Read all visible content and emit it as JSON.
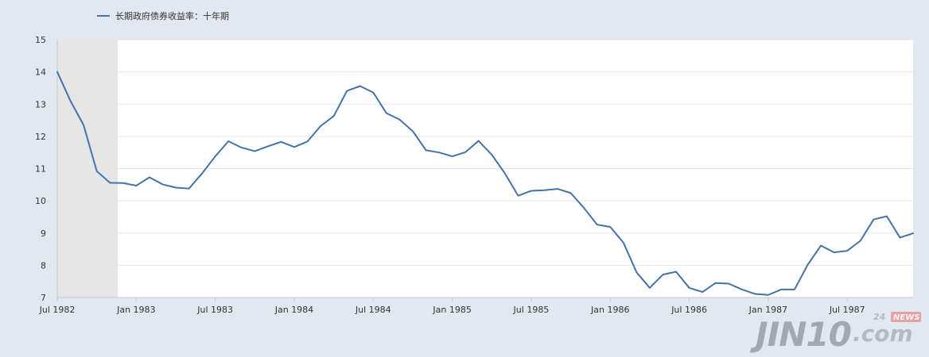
{
  "chart_data": {
    "type": "line",
    "title": "",
    "xlabel": "",
    "ylabel": "",
    "legend_position": "top-left",
    "grid": true,
    "ylim": [
      7,
      15
    ],
    "y_ticks": [
      7,
      8,
      9,
      10,
      11,
      12,
      13,
      14,
      15
    ],
    "x_ticks": [
      {
        "label": "Jul 1982",
        "index": 0
      },
      {
        "label": "Jan 1983",
        "index": 6
      },
      {
        "label": "Jul 1983",
        "index": 12
      },
      {
        "label": "Jan 1984",
        "index": 18
      },
      {
        "label": "Jul 1984",
        "index": 24
      },
      {
        "label": "Jan 1985",
        "index": 30
      },
      {
        "label": "Jul 1985",
        "index": 36
      },
      {
        "label": "Jan 1986",
        "index": 42
      },
      {
        "label": "Jul 1986",
        "index": 48
      },
      {
        "label": "Jan 1987",
        "index": 54
      },
      {
        "label": "Jul 1987",
        "index": 60
      }
    ],
    "highlight_range": {
      "from": "1982-07",
      "to": "1982-11"
    },
    "series": [
      {
        "name": "长期政府债券收益率：十年期",
        "color": "#4572a7",
        "x": [
          "1982-07",
          "1982-08",
          "1982-09",
          "1982-10",
          "1982-11",
          "1982-12",
          "1983-01",
          "1983-02",
          "1983-03",
          "1983-04",
          "1983-05",
          "1983-06",
          "1983-07",
          "1983-08",
          "1983-09",
          "1983-10",
          "1983-11",
          "1983-12",
          "1984-01",
          "1984-02",
          "1984-03",
          "1984-04",
          "1984-05",
          "1984-06",
          "1984-07",
          "1984-08",
          "1984-09",
          "1984-10",
          "1984-11",
          "1984-12",
          "1985-01",
          "1985-02",
          "1985-03",
          "1985-04",
          "1985-05",
          "1985-06",
          "1985-07",
          "1985-08",
          "1985-09",
          "1985-10",
          "1985-11",
          "1985-12",
          "1986-01",
          "1986-02",
          "1986-03",
          "1986-04",
          "1986-05",
          "1986-06",
          "1986-07",
          "1986-08",
          "1986-09",
          "1986-10",
          "1986-11",
          "1986-12",
          "1987-01",
          "1987-02",
          "1987-03",
          "1987-04",
          "1987-05",
          "1987-06",
          "1987-07",
          "1987-08",
          "1987-09",
          "1987-10",
          "1987-11",
          "1987-12"
        ],
        "values": [
          14.0,
          13.1,
          12.35,
          10.92,
          10.56,
          10.55,
          10.47,
          10.73,
          10.51,
          10.41,
          10.38,
          10.85,
          11.38,
          11.85,
          11.65,
          11.54,
          11.69,
          11.83,
          11.67,
          11.84,
          12.32,
          12.63,
          13.41,
          13.56,
          13.36,
          12.72,
          12.52,
          12.16,
          11.57,
          11.5,
          11.38,
          11.51,
          11.86,
          11.43,
          10.85,
          10.16,
          10.31,
          10.33,
          10.37,
          10.24,
          9.78,
          9.26,
          9.19,
          8.7,
          7.78,
          7.3,
          7.71,
          7.8,
          7.3,
          7.17,
          7.45,
          7.43,
          7.25,
          7.11,
          7.08,
          7.25,
          7.25,
          8.02,
          8.61,
          8.4,
          8.45,
          8.76,
          9.42,
          9.52,
          8.86,
          8.99
        ]
      }
    ]
  },
  "watermark": {
    "brand": "JIN10",
    "suffix": ".com",
    "tag_number": "24",
    "tag_word": "NEWS"
  }
}
